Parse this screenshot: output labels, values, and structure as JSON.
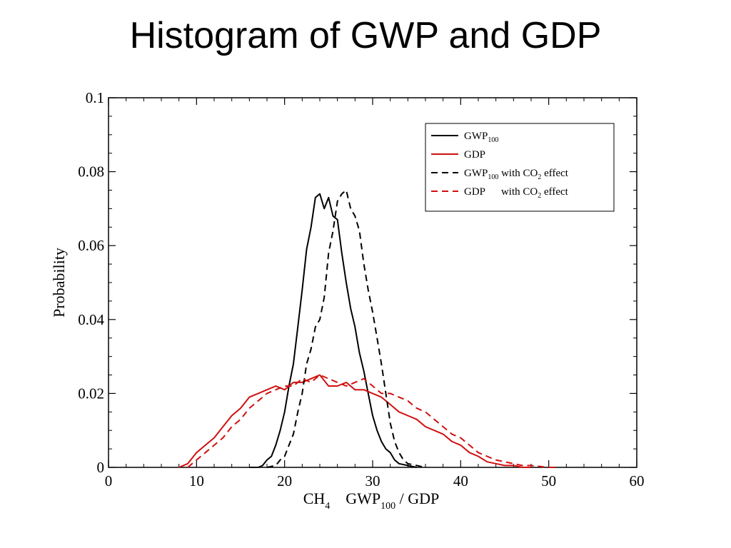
{
  "slide": {
    "title": "Histogram of GWP and GDP"
  },
  "chart_data": {
    "type": "line",
    "title": "Histogram of GWP and GDP",
    "xlabel": {
      "prefix": "CH",
      "prefix_sub": "4",
      "main": "GWP",
      "main_sub": "100",
      "suffix": " / GDP"
    },
    "ylabel": "Probability",
    "xlim": [
      0,
      60
    ],
    "ylim": [
      0,
      0.1
    ],
    "x_ticks": [
      "0",
      "10",
      "20",
      "30",
      "40",
      "50",
      "60"
    ],
    "y_ticks": [
      "0",
      "0.02",
      "0.04",
      "0.06",
      "0.08",
      "0.1"
    ],
    "x_tick_values": [
      0,
      10,
      20,
      30,
      40,
      50,
      60
    ],
    "y_tick_values": [
      0,
      0.02,
      0.04,
      0.06,
      0.08,
      0.1
    ],
    "legend_position": "top-right",
    "grid": false,
    "series": [
      {
        "legend": {
          "text": "GWP",
          "sub": "100",
          "rest": ""
        },
        "color": "#000000",
        "dashed": false,
        "x": [
          16,
          17,
          17.5,
          18,
          18.5,
          19,
          19.5,
          20,
          20.5,
          21,
          21.5,
          22,
          22.5,
          23,
          23.5,
          24,
          24.5,
          25,
          25.5,
          26,
          26.5,
          27,
          27.5,
          28,
          28.5,
          29,
          29.5,
          30,
          30.5,
          31,
          31.5,
          32,
          32.5,
          33,
          34,
          35
        ],
        "y": [
          0,
          0,
          0.0005,
          0.002,
          0.003,
          0.006,
          0.01,
          0.015,
          0.022,
          0.028,
          0.038,
          0.048,
          0.059,
          0.065,
          0.073,
          0.074,
          0.07,
          0.073,
          0.068,
          0.067,
          0.058,
          0.05,
          0.043,
          0.038,
          0.031,
          0.026,
          0.02,
          0.014,
          0.01,
          0.007,
          0.005,
          0.004,
          0.002,
          0.001,
          0.0005,
          0
        ]
      },
      {
        "legend": {
          "text": "GDP",
          "sub": "",
          "rest": ""
        },
        "color": "#d01010",
        "dashed": false,
        "x": [
          8,
          9,
          10,
          11,
          12,
          13,
          14,
          15,
          16,
          17,
          18,
          19,
          20,
          21,
          22,
          23,
          24,
          25,
          26,
          27,
          28,
          29,
          30,
          31,
          32,
          33,
          34,
          35,
          36,
          37,
          38,
          39,
          40,
          41,
          42,
          43,
          44,
          45,
          46,
          47,
          48
        ],
        "y": [
          0,
          0.001,
          0.004,
          0.006,
          0.008,
          0.011,
          0.014,
          0.016,
          0.019,
          0.02,
          0.021,
          0.022,
          0.021,
          0.023,
          0.023,
          0.024,
          0.025,
          0.022,
          0.022,
          0.023,
          0.021,
          0.021,
          0.02,
          0.019,
          0.017,
          0.015,
          0.014,
          0.013,
          0.011,
          0.01,
          0.009,
          0.007,
          0.006,
          0.004,
          0.003,
          0.0015,
          0.001,
          0.0005,
          0.0005,
          0,
          0
        ]
      },
      {
        "legend": {
          "text": "GWP",
          "sub": "100",
          "rest": " with CO",
          "rest_sub": "2",
          "rest2": " effect"
        },
        "color": "#000000",
        "dashed": true,
        "x": [
          18,
          19,
          19.5,
          20,
          20.5,
          21,
          21.5,
          22,
          22.5,
          23,
          23.5,
          24,
          24.5,
          25,
          25.5,
          26,
          26.5,
          27,
          27.5,
          28,
          28.5,
          29,
          29.5,
          30,
          30.5,
          31,
          31.5,
          32,
          32.5,
          33,
          33.5,
          34,
          35,
          36
        ],
        "y": [
          0,
          0.0005,
          0.002,
          0.003,
          0.006,
          0.009,
          0.015,
          0.02,
          0.028,
          0.032,
          0.038,
          0.04,
          0.046,
          0.058,
          0.064,
          0.072,
          0.074,
          0.075,
          0.07,
          0.068,
          0.064,
          0.055,
          0.048,
          0.042,
          0.035,
          0.028,
          0.02,
          0.012,
          0.007,
          0.004,
          0.002,
          0.001,
          0.0005,
          0
        ]
      },
      {
        "legend": {
          "text": "GDP",
          "sub": "",
          "rest": "      with CO",
          "rest_sub": "2",
          "rest2": " effect"
        },
        "color": "#d01010",
        "dashed": true,
        "x": [
          9,
          10,
          11,
          12,
          13,
          14,
          15,
          16,
          17,
          18,
          19,
          20,
          21,
          22,
          23,
          24,
          25,
          26,
          27,
          28,
          29,
          30,
          31,
          32,
          33,
          34,
          35,
          36,
          37,
          38,
          39,
          40,
          41,
          42,
          43,
          44,
          45,
          46,
          47,
          48,
          50,
          51
        ],
        "y": [
          0,
          0.002,
          0.004,
          0.006,
          0.008,
          0.011,
          0.013,
          0.016,
          0.018,
          0.02,
          0.021,
          0.022,
          0.022,
          0.024,
          0.023,
          0.025,
          0.024,
          0.023,
          0.022,
          0.023,
          0.024,
          0.022,
          0.02,
          0.02,
          0.019,
          0.018,
          0.016,
          0.015,
          0.013,
          0.011,
          0.009,
          0.008,
          0.006,
          0.004,
          0.003,
          0.002,
          0.0015,
          0.001,
          0.0005,
          0.0005,
          0,
          0
        ]
      }
    ]
  }
}
